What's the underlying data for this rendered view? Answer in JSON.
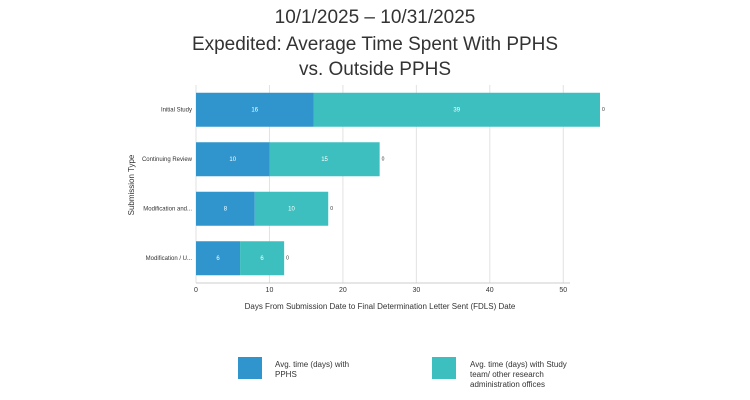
{
  "chart_data": {
    "type": "stacked_barh",
    "title": [
      "10/1/2025 – 10/31/2025",
      "Expedited: Average Time Spent With PPHS",
      "vs. Outside PPHS"
    ],
    "categories": [
      "Initial Study",
      "Continuing Review",
      "Modification and...",
      "Modification / U..."
    ],
    "series": [
      {
        "name": "Avg. time (days) with PPHS",
        "color": "#2f95cc",
        "values": [
          16,
          10,
          8,
          6
        ]
      },
      {
        "name": "Avg. time (days) with Study team/ other research administration offices",
        "color": "#3dbfbf",
        "values": [
          39,
          15,
          10,
          6
        ]
      },
      {
        "values": [
          0,
          0,
          0,
          0
        ]
      }
    ],
    "xlabel": "Days From Submission Date to Final Determination Letter Sent (FDLS) Date",
    "ylabel": "Submission Type",
    "xlim": [
      0,
      55
    ],
    "xticks": [
      0,
      10,
      20,
      30,
      40,
      50
    ],
    "grid": true
  }
}
